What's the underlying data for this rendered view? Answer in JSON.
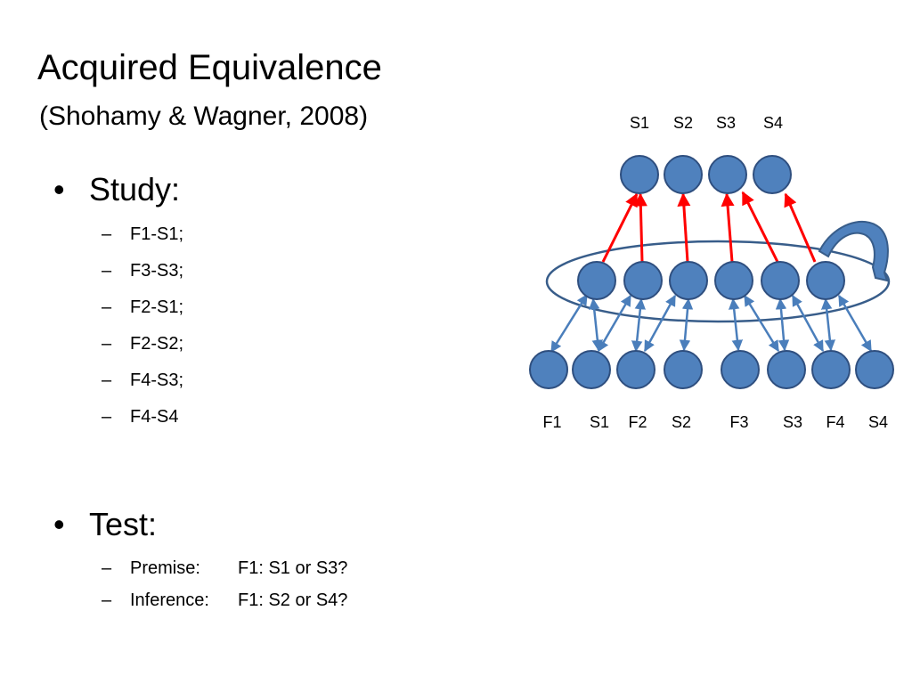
{
  "slide": {
    "title": "Acquired Equivalence",
    "subtitle": "(Shohamy & Wagner, 2008)",
    "bullet_glyph": "•",
    "dash_glyph": "–"
  },
  "study": {
    "heading": "Study:",
    "items": [
      "F1-S1;",
      "F3-S3;",
      "F2-S1;",
      "F2-S2;",
      "F4-S3;",
      "F4-S4"
    ]
  },
  "test": {
    "heading": "Test:",
    "items": [
      {
        "label": "Premise:",
        "question": "F1: S1 or S3?"
      },
      {
        "label": "Inference:",
        "question": "F1: S2 or S4?"
      }
    ]
  },
  "diagram": {
    "top_labels": [
      "S1",
      "S2",
      "S3",
      "S4"
    ],
    "bottom_labels": [
      "F1",
      "S1",
      "F2",
      "S2",
      "F3",
      "S3",
      "F4",
      "S4"
    ],
    "colors": {
      "node_fill": "#4f81bd",
      "node_stroke": "#2f4f7f",
      "red_arrow": "#ff0000",
      "blue_arrow": "#4a7ebb",
      "ellipse_stroke": "#385d8a"
    }
  }
}
